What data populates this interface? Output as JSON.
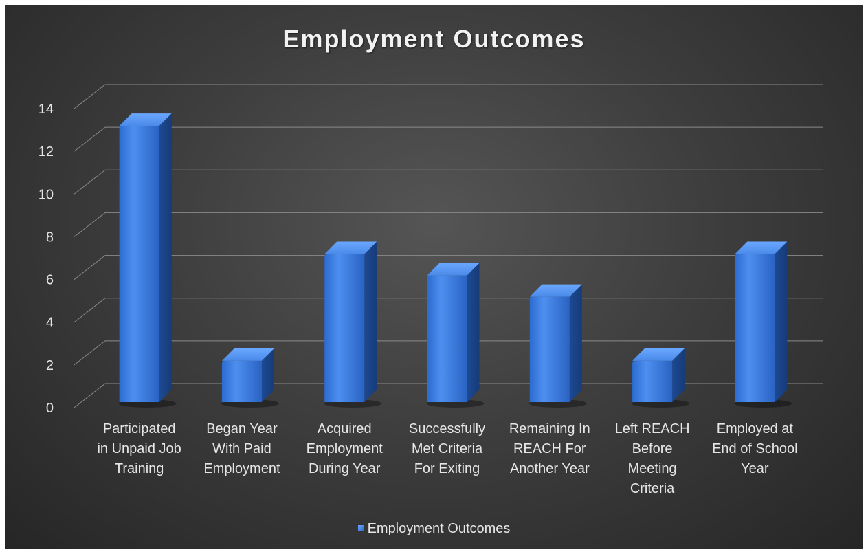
{
  "chart_data": {
    "type": "bar",
    "title": "Employment Outcomes",
    "categories": [
      "Participated in Unpaid Job Training",
      "Began Year With Paid Employment",
      "Acquired Employment During Year",
      "Successfully Met Criteria For Exiting",
      "Remaining In REACH For Another Year",
      "Left REACH Before Meeting Criteria",
      "Employed at End of School Year"
    ],
    "category_lines": [
      [
        "Participated",
        "in Unpaid Job",
        "Training"
      ],
      [
        "Began Year",
        "With Paid",
        "Employment"
      ],
      [
        "Acquired",
        "Employment",
        "During Year"
      ],
      [
        "Successfully",
        "Met Criteria",
        "For Exiting"
      ],
      [
        "Remaining In",
        "REACH For",
        "Another Year"
      ],
      [
        "Left REACH",
        "Before",
        "Meeting",
        "Criteria"
      ],
      [
        "Employed at",
        "End of School",
        "Year"
      ]
    ],
    "series": [
      {
        "name": "Employment Outcomes",
        "values": [
          13,
          2,
          7,
          6,
          5,
          2,
          7
        ]
      }
    ],
    "ylim": [
      0,
      14
    ],
    "yticks": [
      "0",
      "2",
      "4",
      "6",
      "8",
      "10",
      "12",
      "14"
    ],
    "grid": true,
    "legend": "bottom",
    "style": "3d-column",
    "colors": {
      "bar_front": "#3b7ddd",
      "bar_side": "#1f4f9c",
      "bar_top": "#5c9bef",
      "background": "#3e3e3e",
      "text": "#e6e6e6"
    }
  },
  "legend": {
    "label": "Employment Outcomes"
  }
}
